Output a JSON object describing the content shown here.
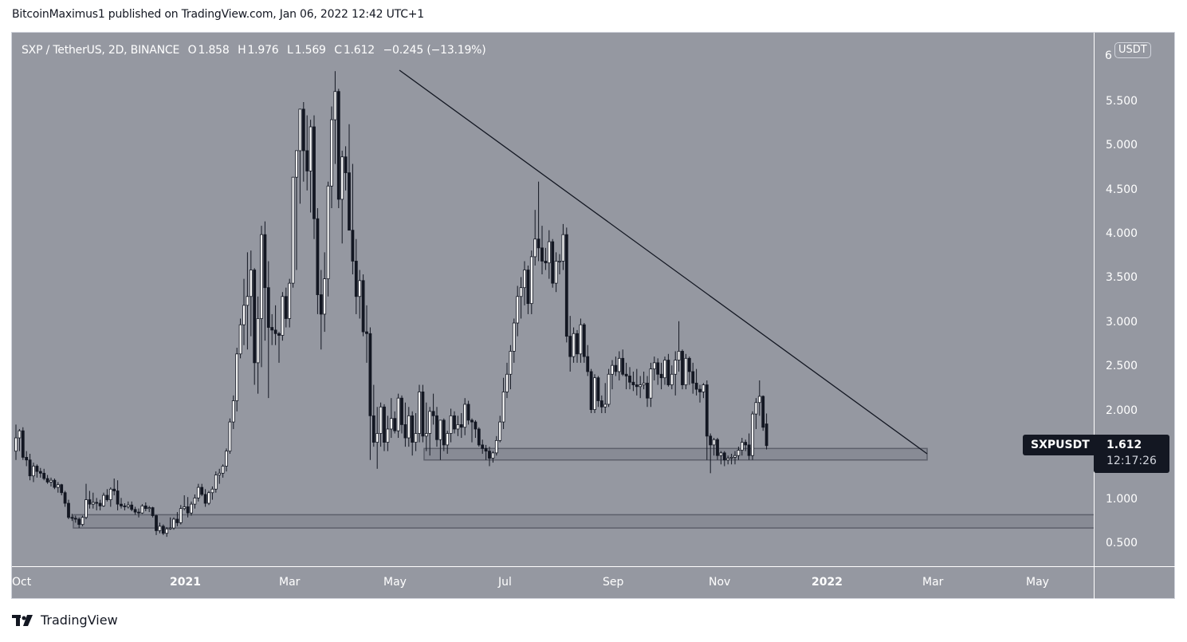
{
  "header": {
    "published_text": "BitcoinMaximus1 published on TradingView.com, Jan 06, 2022 12:42 UTC+1"
  },
  "legend": {
    "symbol": "SXP / TetherUS, 2D, BINANCE",
    "o_label": "O",
    "o_value": "1.858",
    "h_label": "H",
    "h_value": "1.976",
    "l_label": "L",
    "l_value": "1.569",
    "c_label": "C",
    "c_value": "1.612",
    "change": "−0.245 (−13.19%)"
  },
  "price_axis": {
    "unit": "USDT",
    "top_label": "6",
    "ticks": [
      "5.500",
      "5.000",
      "4.500",
      "4.000",
      "3.500",
      "3.000",
      "2.500",
      "2.000",
      "1.000",
      "0.500"
    ]
  },
  "time_axis": {
    "ticks": [
      {
        "label": "Oct",
        "bold": false
      },
      {
        "label": "2021",
        "bold": true
      },
      {
        "label": "Mar",
        "bold": false
      },
      {
        "label": "May",
        "bold": false
      },
      {
        "label": "Jul",
        "bold": false
      },
      {
        "label": "Sep",
        "bold": false
      },
      {
        "label": "Nov",
        "bold": false
      },
      {
        "label": "2022",
        "bold": true
      },
      {
        "label": "Mar",
        "bold": false
      },
      {
        "label": "May",
        "bold": false
      }
    ]
  },
  "last_price_tag": {
    "symbol": "SXPUSDT",
    "price": "1.612",
    "countdown": "12:17:26"
  },
  "footer": {
    "brand": "TradingView"
  },
  "colors": {
    "background": "#9598a1",
    "bull_body": "#ffffff",
    "bear_body": "#131722",
    "wick": "#131722",
    "trendline": "#131722",
    "zone_fill": "#868993",
    "zone_border": "#5d606b",
    "tag_bg": "#131722"
  },
  "chart_data": {
    "type": "candlestick",
    "title": "SXP / TetherUS, 2D, BINANCE",
    "xlabel": "",
    "ylabel": "USDT",
    "ylim": [
      0.3,
      6.0
    ],
    "x_ticks": [
      "Oct",
      "2021",
      "Mar",
      "May",
      "Jul",
      "Sep",
      "Nov",
      "2022",
      "Mar",
      "May"
    ],
    "y_ticks": [
      0.5,
      1.0,
      2.0,
      2.5,
      3.0,
      3.5,
      4.0,
      4.5,
      5.0,
      5.5,
      6
    ],
    "grid": false,
    "last": {
      "open": 1.858,
      "high": 1.976,
      "low": 1.569,
      "close": 1.612,
      "change": -0.245,
      "change_pct": -13.19
    },
    "annotations": [
      {
        "type": "trendline",
        "label": "descending resistance",
        "from": {
          "date": "2021-05-01",
          "price": 5.85
        },
        "to": {
          "date": "2022-02-25",
          "price": 1.52
        }
      },
      {
        "type": "support_zone",
        "from_date": "2021-05-18",
        "to_date": "2022-02-25",
        "price_low": 1.45,
        "price_high": 1.58
      },
      {
        "type": "support_zone",
        "from_date": "2020-11-07",
        "to_date": "extends right",
        "price_low": 0.68,
        "price_high": 0.83
      }
    ],
    "candles": [
      [
        1.55,
        1.85,
        1.45,
        1.7
      ],
      [
        1.7,
        1.8,
        1.55,
        1.78
      ],
      [
        1.78,
        1.82,
        1.45,
        1.48
      ],
      [
        1.48,
        1.55,
        1.38,
        1.45
      ],
      [
        1.45,
        1.52,
        1.22,
        1.27
      ],
      [
        1.27,
        1.42,
        1.2,
        1.38
      ],
      [
        1.38,
        1.4,
        1.25,
        1.32
      ],
      [
        1.32,
        1.36,
        1.25,
        1.3
      ],
      [
        1.3,
        1.35,
        1.22,
        1.24
      ],
      [
        1.24,
        1.28,
        1.18,
        1.2
      ],
      [
        1.2,
        1.25,
        1.15,
        1.22
      ],
      [
        1.22,
        1.24,
        1.12,
        1.14
      ],
      [
        1.14,
        1.2,
        1.08,
        1.17
      ],
      [
        1.17,
        1.18,
        1.05,
        1.08
      ],
      [
        1.08,
        1.1,
        0.92,
        0.96
      ],
      [
        0.96,
        1.0,
        0.78,
        0.8
      ],
      [
        0.8,
        0.84,
        0.76,
        0.79
      ],
      [
        0.79,
        0.82,
        0.74,
        0.78
      ],
      [
        0.78,
        0.8,
        0.68,
        0.72
      ],
      [
        0.72,
        0.82,
        0.7,
        0.8
      ],
      [
        0.8,
        1.18,
        0.78,
        1.0
      ],
      [
        1.0,
        1.1,
        0.9,
        0.95
      ],
      [
        0.95,
        1.08,
        0.9,
        0.97
      ],
      [
        0.97,
        1.02,
        0.88,
        0.96
      ],
      [
        0.96,
        1.0,
        0.88,
        0.93
      ],
      [
        0.93,
        1.08,
        0.92,
        1.05
      ],
      [
        1.05,
        1.12,
        0.98,
        1.0
      ],
      [
        1.0,
        1.14,
        0.92,
        1.12
      ],
      [
        1.12,
        1.24,
        1.05,
        1.1
      ],
      [
        1.1,
        1.22,
        0.88,
        0.95
      ],
      [
        0.95,
        1.02,
        0.9,
        0.93
      ],
      [
        0.93,
        0.96,
        0.88,
        0.92
      ],
      [
        0.92,
        0.98,
        0.9,
        0.94
      ],
      [
        0.94,
        0.98,
        0.87,
        0.89
      ],
      [
        0.89,
        0.92,
        0.83,
        0.86
      ],
      [
        0.86,
        0.9,
        0.8,
        0.85
      ],
      [
        0.85,
        0.95,
        0.84,
        0.93
      ],
      [
        0.93,
        0.97,
        0.87,
        0.9
      ],
      [
        0.9,
        0.93,
        0.86,
        0.91
      ],
      [
        0.91,
        0.92,
        0.8,
        0.82
      ],
      [
        0.82,
        0.83,
        0.6,
        0.65
      ],
      [
        0.65,
        0.74,
        0.62,
        0.7
      ],
      [
        0.7,
        0.72,
        0.6,
        0.62
      ],
      [
        0.62,
        0.69,
        0.58,
        0.67
      ],
      [
        0.67,
        0.8,
        0.66,
        0.68
      ],
      [
        0.68,
        0.8,
        0.66,
        0.78
      ],
      [
        0.78,
        0.86,
        0.7,
        0.74
      ],
      [
        0.74,
        0.94,
        0.72,
        0.9
      ],
      [
        0.9,
        1.05,
        0.88,
        0.92
      ],
      [
        0.92,
        1.03,
        0.8,
        0.85
      ],
      [
        0.85,
        0.98,
        0.82,
        0.95
      ],
      [
        0.95,
        1.06,
        0.9,
        1.02
      ],
      [
        1.02,
        1.18,
        0.98,
        1.14
      ],
      [
        1.14,
        1.18,
        1.04,
        1.06
      ],
      [
        1.06,
        1.12,
        0.92,
        0.96
      ],
      [
        0.96,
        1.1,
        0.94,
        1.08
      ],
      [
        1.08,
        1.15,
        1.0,
        1.12
      ],
      [
        1.12,
        1.32,
        1.08,
        1.28
      ],
      [
        1.28,
        1.35,
        1.18,
        1.3
      ],
      [
        1.3,
        1.4,
        1.25,
        1.38
      ],
      [
        1.38,
        1.58,
        1.32,
        1.55
      ],
      [
        1.55,
        1.92,
        1.52,
        1.88
      ],
      [
        1.88,
        2.18,
        1.8,
        2.12
      ],
      [
        2.12,
        2.72,
        2.0,
        2.65
      ],
      [
        2.65,
        3.05,
        2.6,
        2.98
      ],
      [
        2.98,
        3.5,
        2.75,
        3.2
      ],
      [
        3.2,
        3.8,
        2.7,
        3.3
      ],
      [
        3.3,
        3.82,
        2.85,
        3.6
      ],
      [
        3.6,
        3.62,
        2.3,
        2.55
      ],
      [
        2.55,
        3.3,
        2.2,
        3.05
      ],
      [
        3.05,
        4.1,
        2.5,
        4.0
      ],
      [
        4.0,
        4.15,
        2.8,
        3.4
      ],
      [
        3.4,
        3.7,
        2.15,
        2.95
      ],
      [
        2.95,
        3.1,
        2.75,
        2.92
      ],
      [
        2.92,
        3.2,
        2.75,
        2.88
      ],
      [
        2.88,
        2.9,
        2.55,
        2.86
      ],
      [
        2.86,
        3.35,
        2.8,
        3.3
      ],
      [
        3.3,
        3.4,
        2.95,
        3.05
      ],
      [
        3.05,
        3.5,
        2.95,
        3.45
      ],
      [
        3.45,
        4.2,
        3.4,
        4.65
      ],
      [
        4.65,
        4.85,
        3.6,
        4.95
      ],
      [
        4.95,
        5.25,
        4.35,
        5.42
      ],
      [
        5.42,
        5.5,
        4.6,
        4.95
      ],
      [
        4.95,
        5.35,
        4.5,
        4.72
      ],
      [
        4.72,
        5.3,
        4.25,
        5.22
      ],
      [
        5.22,
        5.35,
        3.95,
        4.18
      ],
      [
        4.18,
        4.3,
        3.1,
        3.32
      ],
      [
        3.32,
        3.6,
        2.7,
        3.1
      ],
      [
        3.1,
        3.8,
        2.9,
        3.5
      ],
      [
        3.5,
        4.6,
        3.3,
        4.55
      ],
      [
        4.55,
        5.45,
        4.3,
        5.3
      ],
      [
        5.3,
        5.85,
        4.8,
        5.62
      ],
      [
        5.62,
        5.65,
        4.3,
        4.4
      ],
      [
        4.4,
        4.95,
        3.9,
        4.88
      ],
      [
        4.88,
        5.0,
        4.5,
        4.7
      ],
      [
        4.7,
        5.25,
        4.2,
        4.05
      ],
      [
        4.05,
        4.8,
        3.55,
        3.7
      ],
      [
        3.7,
        3.95,
        3.1,
        3.3
      ],
      [
        3.3,
        3.6,
        3.05,
        3.48
      ],
      [
        3.48,
        3.55,
        2.85,
        2.9
      ],
      [
        2.9,
        3.2,
        2.55,
        2.88
      ],
      [
        2.88,
        2.95,
        1.45,
        1.95
      ],
      [
        1.95,
        2.3,
        1.6,
        1.65
      ],
      [
        1.65,
        2.05,
        1.35,
        1.75
      ],
      [
        1.75,
        2.1,
        1.6,
        2.05
      ],
      [
        2.05,
        2.08,
        1.55,
        1.65
      ],
      [
        1.65,
        1.95,
        1.55,
        1.8
      ],
      [
        1.8,
        2.15,
        1.7,
        1.92
      ],
      [
        1.92,
        2.0,
        1.75,
        1.78
      ],
      [
        1.78,
        2.2,
        1.7,
        2.15
      ],
      [
        2.15,
        2.18,
        1.75,
        1.85
      ],
      [
        1.85,
        2.1,
        1.6,
        1.7
      ],
      [
        1.7,
        2.05,
        1.6,
        1.95
      ],
      [
        1.95,
        2.0,
        1.5,
        1.65
      ],
      [
        1.65,
        1.98,
        1.55,
        1.75
      ],
      [
        1.75,
        2.3,
        1.65,
        2.22
      ],
      [
        2.22,
        2.3,
        1.65,
        1.72
      ],
      [
        1.72,
        2.1,
        1.55,
        1.75
      ],
      [
        1.75,
        2.05,
        1.5,
        2.0
      ],
      [
        2.0,
        2.2,
        1.85,
        1.95
      ],
      [
        1.95,
        2.05,
        1.6,
        1.68
      ],
      [
        1.68,
        1.9,
        1.45,
        1.9
      ],
      [
        1.9,
        1.92,
        1.55,
        1.62
      ],
      [
        1.62,
        1.78,
        1.52,
        1.75
      ],
      [
        1.75,
        2.03,
        1.65,
        1.95
      ],
      [
        1.95,
        2.0,
        1.75,
        1.8
      ],
      [
        1.8,
        1.95,
        1.72,
        1.85
      ],
      [
        1.85,
        1.98,
        1.7,
        1.82
      ],
      [
        1.82,
        2.15,
        1.73,
        2.08
      ],
      [
        2.08,
        2.12,
        1.85,
        1.9
      ],
      [
        1.9,
        1.92,
        1.65,
        1.88
      ],
      [
        1.88,
        1.9,
        1.7,
        1.8
      ],
      [
        1.8,
        1.82,
        1.6,
        1.62
      ],
      [
        1.62,
        1.68,
        1.52,
        1.58
      ],
      [
        1.58,
        1.62,
        1.45,
        1.55
      ],
      [
        1.55,
        1.6,
        1.38,
        1.47
      ],
      [
        1.47,
        1.55,
        1.42,
        1.53
      ],
      [
        1.53,
        1.72,
        1.5,
        1.67
      ],
      [
        1.67,
        1.95,
        1.65,
        1.88
      ],
      [
        1.88,
        2.38,
        1.8,
        2.22
      ],
      [
        2.22,
        2.55,
        2.15,
        2.42
      ],
      [
        2.42,
        2.75,
        2.25,
        2.68
      ],
      [
        2.68,
        3.05,
        2.55,
        3.0
      ],
      [
        3.0,
        3.42,
        2.85,
        3.3
      ],
      [
        3.3,
        3.52,
        3.05,
        3.4
      ],
      [
        3.4,
        3.7,
        3.2,
        3.6
      ],
      [
        3.6,
        3.65,
        3.1,
        3.22
      ],
      [
        3.22,
        3.82,
        3.1,
        3.75
      ],
      [
        3.75,
        4.28,
        3.65,
        3.95
      ],
      [
        3.95,
        4.6,
        3.7,
        3.85
      ],
      [
        3.85,
        4.1,
        3.55,
        3.7
      ],
      [
        3.7,
        3.85,
        3.6,
        3.68
      ],
      [
        3.68,
        4.05,
        3.5,
        3.92
      ],
      [
        3.92,
        3.95,
        3.4,
        3.45
      ],
      [
        3.45,
        3.8,
        3.35,
        3.7
      ],
      [
        3.7,
        3.78,
        3.55,
        3.7
      ],
      [
        3.7,
        4.12,
        3.6,
        4.0
      ],
      [
        4.0,
        4.08,
        2.78,
        2.85
      ],
      [
        2.85,
        3.08,
        2.45,
        2.62
      ],
      [
        2.62,
        2.95,
        2.55,
        2.88
      ],
      [
        2.88,
        2.92,
        2.55,
        2.65
      ],
      [
        2.65,
        3.05,
        2.55,
        2.98
      ],
      [
        2.98,
        3.0,
        2.55,
        2.62
      ],
      [
        2.62,
        2.75,
        2.4,
        2.45
      ],
      [
        2.45,
        2.48,
        1.98,
        2.02
      ],
      [
        2.02,
        2.42,
        1.98,
        2.38
      ],
      [
        2.38,
        2.4,
        2.05,
        2.12
      ],
      [
        2.12,
        2.18,
        1.98,
        2.05
      ],
      [
        2.05,
        2.32,
        1.98,
        2.08
      ],
      [
        2.08,
        2.48,
        2.05,
        2.42
      ],
      [
        2.42,
        2.58,
        2.25,
        2.52
      ],
      [
        2.52,
        2.62,
        2.4,
        2.45
      ],
      [
        2.45,
        2.68,
        2.35,
        2.6
      ],
      [
        2.6,
        2.7,
        2.4,
        2.42
      ],
      [
        2.42,
        2.55,
        2.25,
        2.4
      ],
      [
        2.4,
        2.5,
        2.25,
        2.33
      ],
      [
        2.33,
        2.45,
        2.23,
        2.3
      ],
      [
        2.3,
        2.48,
        2.18,
        2.28
      ],
      [
        2.28,
        2.4,
        2.15,
        2.3
      ],
      [
        2.3,
        2.45,
        2.25,
        2.32
      ],
      [
        2.32,
        2.4,
        2.05,
        2.15
      ],
      [
        2.15,
        2.55,
        2.05,
        2.48
      ],
      [
        2.48,
        2.62,
        2.35,
        2.55
      ],
      [
        2.55,
        2.6,
        2.3,
        2.42
      ],
      [
        2.42,
        2.55,
        2.25,
        2.38
      ],
      [
        2.38,
        2.62,
        2.3,
        2.58
      ],
      [
        2.58,
        2.65,
        2.28,
        2.3
      ],
      [
        2.3,
        2.52,
        2.25,
        2.42
      ],
      [
        2.42,
        2.68,
        2.18,
        2.58
      ],
      [
        2.58,
        3.02,
        2.45,
        2.68
      ],
      [
        2.68,
        2.7,
        2.25,
        2.3
      ],
      [
        2.3,
        2.65,
        2.25,
        2.6
      ],
      [
        2.6,
        2.62,
        2.3,
        2.45
      ],
      [
        2.45,
        2.55,
        2.2,
        2.32
      ],
      [
        2.32,
        2.48,
        2.18,
        2.25
      ],
      [
        2.25,
        2.3,
        2.1,
        2.22
      ],
      [
        2.22,
        2.32,
        2.15,
        2.3
      ],
      [
        2.3,
        2.35,
        1.45,
        1.72
      ],
      [
        1.72,
        1.75,
        1.3,
        1.62
      ],
      [
        1.62,
        1.7,
        1.5,
        1.68
      ],
      [
        1.68,
        1.7,
        1.45,
        1.5
      ],
      [
        1.5,
        1.55,
        1.4,
        1.53
      ],
      [
        1.53,
        1.55,
        1.38,
        1.45
      ],
      [
        1.45,
        1.5,
        1.4,
        1.47
      ],
      [
        1.47,
        1.52,
        1.4,
        1.48
      ],
      [
        1.48,
        1.55,
        1.4,
        1.5
      ],
      [
        1.5,
        1.6,
        1.45,
        1.56
      ],
      [
        1.56,
        1.7,
        1.5,
        1.65
      ],
      [
        1.65,
        1.68,
        1.55,
        1.62
      ],
      [
        1.62,
        1.75,
        1.45,
        1.5
      ],
      [
        1.5,
        2.0,
        1.45,
        1.97
      ],
      [
        1.97,
        2.15,
        1.8,
        2.1
      ],
      [
        2.1,
        2.35,
        1.95,
        2.17
      ],
      [
        2.17,
        2.18,
        1.78,
        1.82
      ],
      [
        1.858,
        1.976,
        1.569,
        1.612
      ]
    ]
  }
}
